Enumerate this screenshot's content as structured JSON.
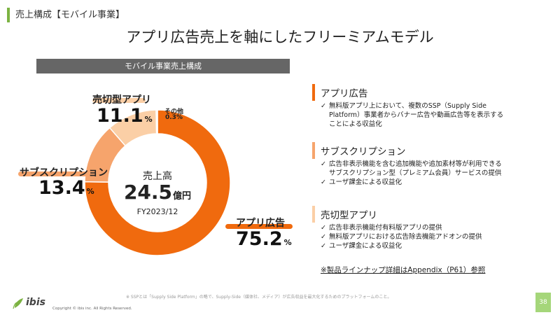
{
  "breadcrumb": "売上構成【モバイル事業】",
  "title": "アプリ広告売上を軸にしたフリーミアムモデル",
  "chart_header": "モバイル事業売上構成",
  "center": {
    "label": "売上高",
    "value": "24.5",
    "unit": "億円",
    "period": "FY2023/12"
  },
  "colors": {
    "app_ads": "#f06a0e",
    "subscription": "#f6a46c",
    "paid_apps": "#fbcfa6",
    "other": "#fde6cf",
    "accent_green": "#7cb342"
  },
  "chart_data": {
    "type": "pie",
    "title": "モバイル事業売上構成",
    "categories": [
      "アプリ広告",
      "サブスクリプション",
      "売切型アプリ",
      "その他"
    ],
    "values": [
      75.2,
      13.4,
      11.1,
      0.3
    ],
    "unit": "%"
  },
  "labels": {
    "app_ads": {
      "name": "アプリ広告",
      "pct": "75.2",
      "unit": "%"
    },
    "subscription": {
      "name": "サブスクリプション",
      "pct": "13.4",
      "unit": "%"
    },
    "paid_apps": {
      "name": "売切型アプリ",
      "pct": "11.1",
      "unit": "%"
    },
    "other": {
      "name": "その他",
      "pct": "0.3%"
    }
  },
  "sections": [
    {
      "title": "アプリ広告",
      "bullets": [
        "無料版アプリ上において、複数のSSP（Supply Side",
        "Platform）事業者からバナー広告や動画広告等を表示する",
        "ことによる収益化"
      ]
    },
    {
      "title": "サブスクリプション",
      "bullets": [
        "広告非表示機能を含む追加機能や追加素材等が利用できる",
        "サブスクリプション型（プレミアム会員）サービスの提供",
        "ユーザ課金による収益化"
      ]
    },
    {
      "title": "売切型アプリ",
      "bullets": [
        "広告非表示機能付有料版アプリの提供",
        "無料版アプリにおける広告除去機能アドオンの提供",
        "ユーザ課金による収益化"
      ]
    }
  ],
  "appendix_note": "※製品ラインナップ詳細はAppendix（P61）参照",
  "footnote": "※ SSPとは「Supply Side Platform」の略で、Supply-Side（媒体社、メディア）が広告収益を最大化するためのプラットフォームのこと。",
  "copyright": "Copyright © ibis inc. All Rights Reserved.",
  "logo": "ibis",
  "page_number": "38"
}
